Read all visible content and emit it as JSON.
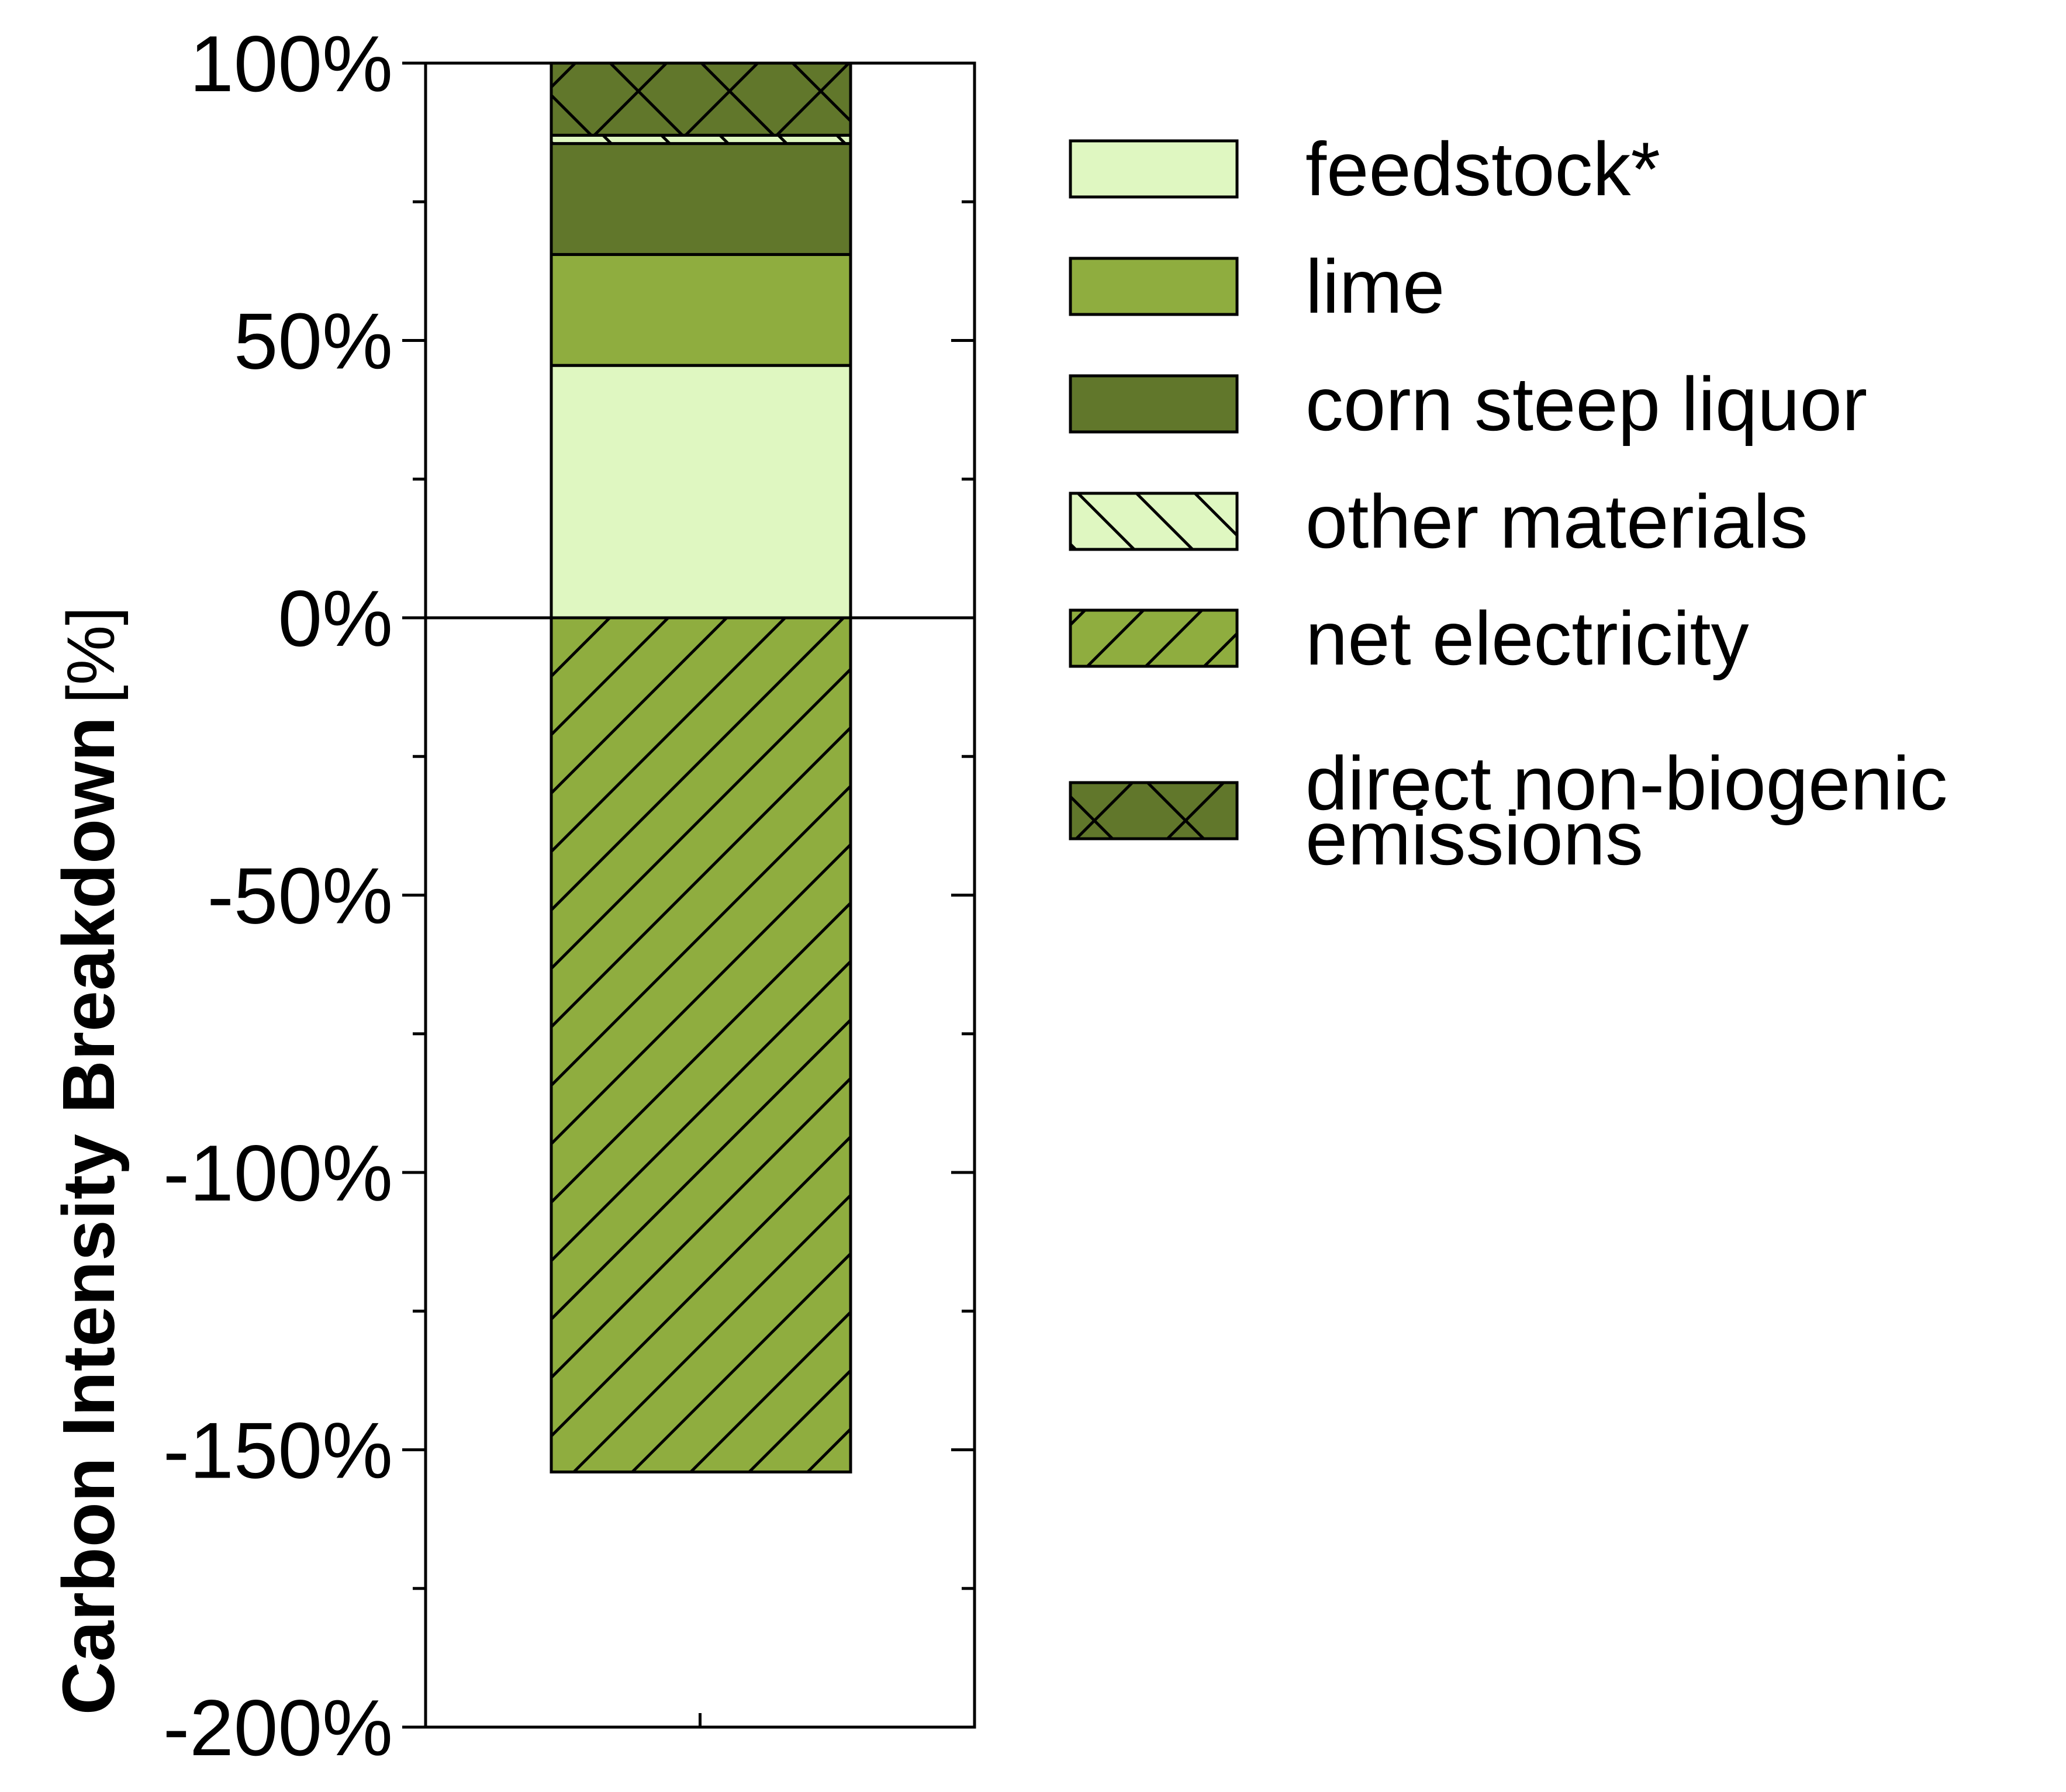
{
  "chart_data": {
    "type": "bar",
    "stacked": true,
    "categories": [
      ""
    ],
    "ylabel_bold": "Carbon Intensity Breakdown",
    "ylabel_unit": "[%]",
    "ylim": [
      -200,
      100
    ],
    "yticks": [
      {
        "value": 100,
        "label": "100%"
      },
      {
        "value": 50,
        "label": "50%"
      },
      {
        "value": 0,
        "label": "0%"
      },
      {
        "value": -50,
        "label": "-50%"
      },
      {
        "value": -100,
        "label": "-100%"
      },
      {
        "value": -150,
        "label": "-150%"
      },
      {
        "value": -200,
        "label": "-200%"
      }
    ],
    "minor_tick_step": 25,
    "legend_position": "right",
    "series": [
      {
        "name": "feedstock*",
        "values": [
          45.5
        ],
        "color": "#dff7c1",
        "hatch": "none"
      },
      {
        "name": "lime",
        "values": [
          20
        ],
        "color": "#8fad3f",
        "hatch": "none"
      },
      {
        "name": "corn steep liquor",
        "values": [
          20
        ],
        "color": "#61772b",
        "hatch": "none"
      },
      {
        "name": "other materials",
        "values": [
          1.5
        ],
        "color": "#dff7c1",
        "hatch": "backslash"
      },
      {
        "name": "net electricity",
        "values": [
          -154
        ],
        "color": "#8fad3f",
        "hatch": "slash"
      },
      {
        "name": "direct non-biogenic emissions",
        "values": [
          13
        ],
        "color": "#61772b",
        "hatch": "cross"
      }
    ]
  },
  "legend": {
    "entries": [
      {
        "lines": [
          "feedstock*"
        ]
      },
      {
        "lines": [
          "lime"
        ]
      },
      {
        "lines": [
          "corn steep liquor"
        ]
      },
      {
        "lines": [
          "other materials"
        ]
      },
      {
        "lines": [
          "net electricity"
        ]
      },
      {
        "lines": [
          "direct non-biogenic",
          "emissions"
        ]
      }
    ]
  }
}
